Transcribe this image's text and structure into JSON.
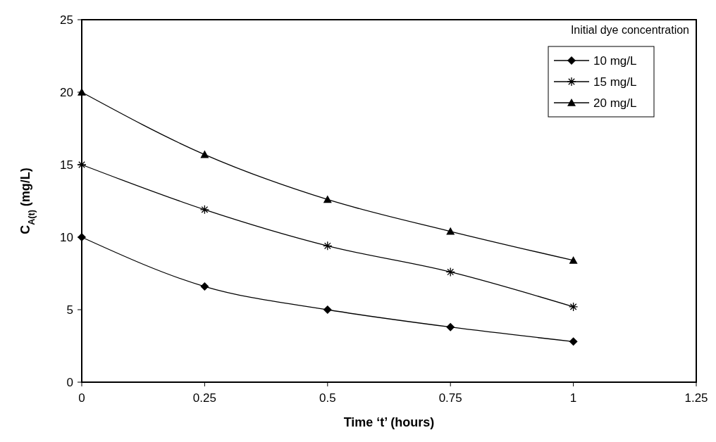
{
  "chart_data": {
    "type": "line",
    "xlabel": "Time ‘t’ (hours)",
    "ylabel": "C$_{A(t)}$ (mg/L)",
    "legend_title": "Initial dye concentration",
    "x": [
      0,
      0.25,
      0.5,
      0.75,
      1
    ],
    "series": [
      {
        "name": "10 mg/L",
        "color": "#000000",
        "marker": "diamond",
        "values": [
          10,
          6.6,
          5.0,
          3.8,
          2.8
        ]
      },
      {
        "name": "15 mg/L",
        "color": "#000000",
        "marker": "cross",
        "values": [
          15,
          11.9,
          9.4,
          7.6,
          5.2
        ]
      },
      {
        "name": "20 mg/L",
        "color": "#000000",
        "marker": "triangle",
        "values": [
          20,
          15.7,
          12.6,
          10.4,
          8.4
        ]
      }
    ],
    "xlim": [
      0,
      1.25
    ],
    "xticks": [
      0,
      0.25,
      0.5,
      0.75,
      1,
      1.25
    ],
    "ylim": [
      0,
      25
    ],
    "yticks": [
      0,
      5,
      10,
      15,
      20,
      25
    ],
    "grid": false,
    "legend": "top right",
    "line_style": "solid"
  }
}
